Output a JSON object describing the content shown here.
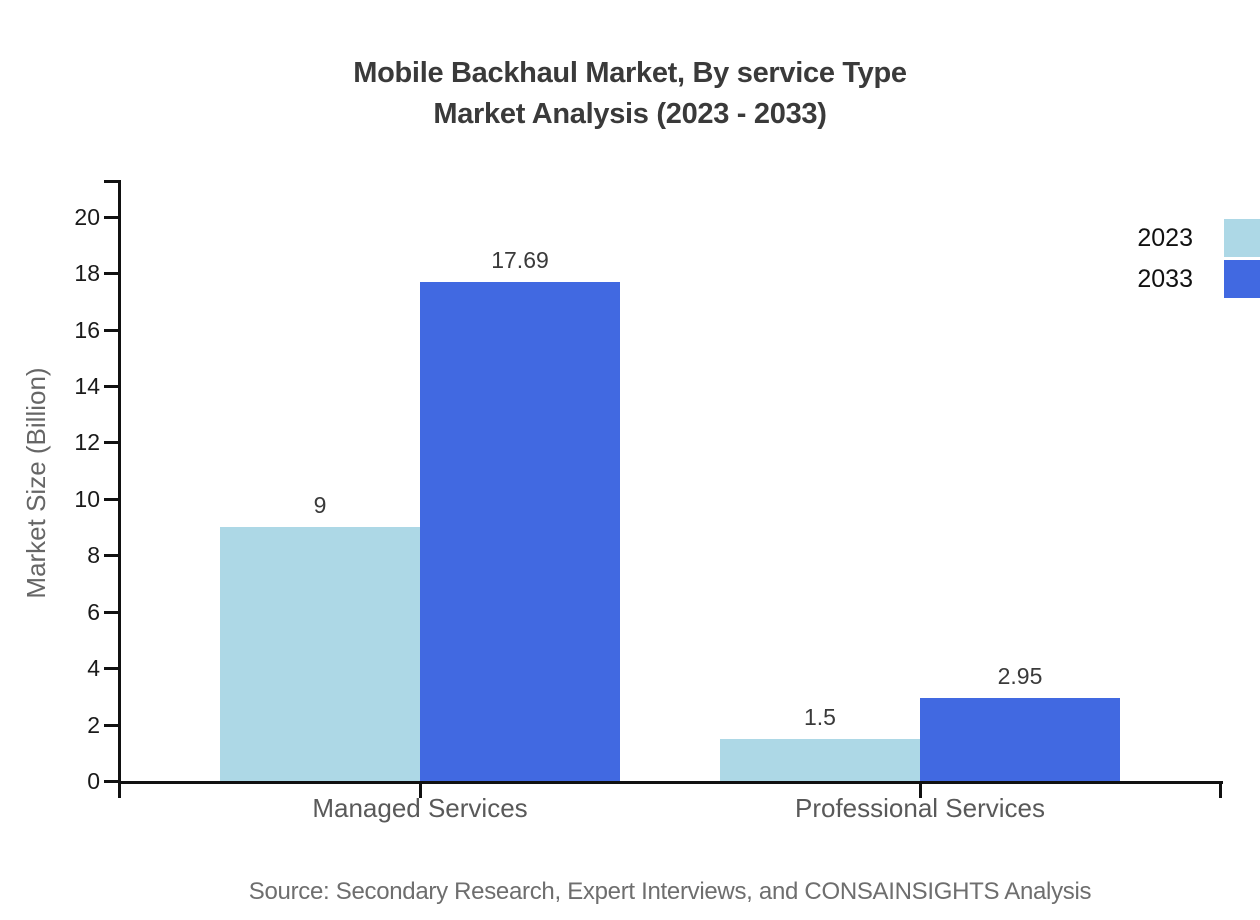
{
  "header": {
    "title_line1": "Mobile Backhaul Market, By service Type",
    "title_line2": "Market Analysis (2023 - 2033)"
  },
  "chart_data": {
    "type": "bar",
    "title": "Mobile Backhaul Market, By service Type Market Analysis (2023 - 2033)",
    "categories": [
      "Managed Services",
      "Professional Services"
    ],
    "series": [
      {
        "name": "2023",
        "color": "#ADD8E6",
        "values": [
          9,
          1.5
        ]
      },
      {
        "name": "2033",
        "color": "#4169E1",
        "values": [
          17.69,
          2.95
        ]
      }
    ],
    "value_labels": [
      "9",
      "17.69",
      "1.5",
      "2.95"
    ],
    "xlabel": "",
    "ylabel": "Market Size (Billion)",
    "ylim": [
      0,
      21
    ],
    "yticks": [
      0,
      2,
      4,
      6,
      8,
      10,
      12,
      14,
      16,
      18,
      20
    ],
    "grid": false,
    "legend_position": "top-right",
    "source": "Source: Secondary Research, Expert Interviews, and CONSAINSIGHTS Analysis"
  }
}
